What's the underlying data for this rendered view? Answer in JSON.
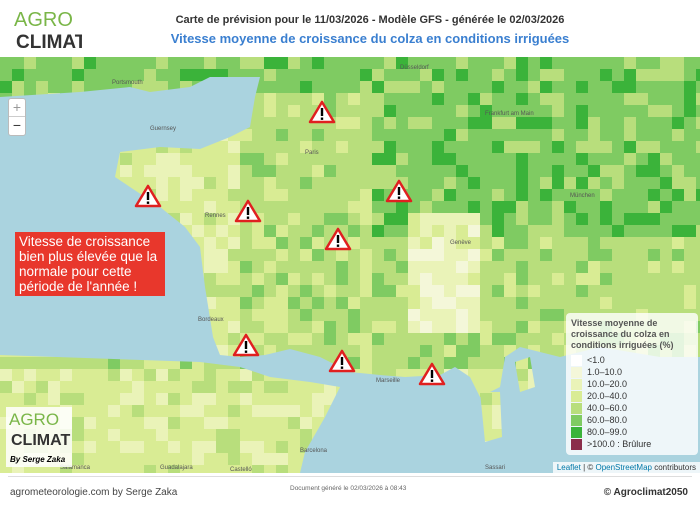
{
  "header": {
    "logo_text": "AGRO CLIMAT",
    "title": "Carte de prévision pour le 11/03/2026 - Modèle GFS - générée le 02/03/2026",
    "subtitle": "Vitesse moyenne de croissance du colza en conditions irriguées"
  },
  "map": {
    "zoom_in": "+",
    "zoom_out": "−",
    "annotation": "Vitesse de croissance bien plus élevée que la normale pour cette période de l'année !",
    "warning_icon": "warning-triangle-icon",
    "warning_count": 8,
    "cities": [
      "Portsmouth",
      "Guernsey",
      "Rennes",
      "Paris",
      "Düsseldorf",
      "Frankfurt am Main",
      "München",
      "Genève",
      "Bordeaux",
      "Marseille",
      "Barcelona",
      "Salamanca",
      "Guadalajara",
      "Castelló",
      "Sassari"
    ],
    "legend": {
      "title": "Vitesse moyenne de croissance du colza en conditions irriguées (%)",
      "items": [
        {
          "label": "<1.0",
          "color": "#ffffff"
        },
        {
          "label": "1.0–10.0",
          "color": "#f4f7d9"
        },
        {
          "label": "10.0–20.0",
          "color": "#eaf3b8"
        },
        {
          "label": "20.0–40.0",
          "color": "#d9ec94"
        },
        {
          "label": "40.0–60.0",
          "color": "#b8de7c"
        },
        {
          "label": "60.0–80.0",
          "color": "#7fcb62"
        },
        {
          "label": "80.0–99.0",
          "color": "#3bb33a"
        },
        {
          "label": ">100.0 : Brûlure",
          "color": "#8a2d4a"
        }
      ]
    },
    "attribution": {
      "leaflet": "Leaflet",
      "sep": " | © ",
      "osm": "OpenStreetMap",
      "suffix": " contributors"
    },
    "logo_credit": "By Serge Zaka"
  },
  "footer": {
    "left": "agrometeorologie.com by Serge Zaka",
    "center": "Document généré le 02/03/2026 à 08:43",
    "right": "© Agroclimat2050"
  }
}
